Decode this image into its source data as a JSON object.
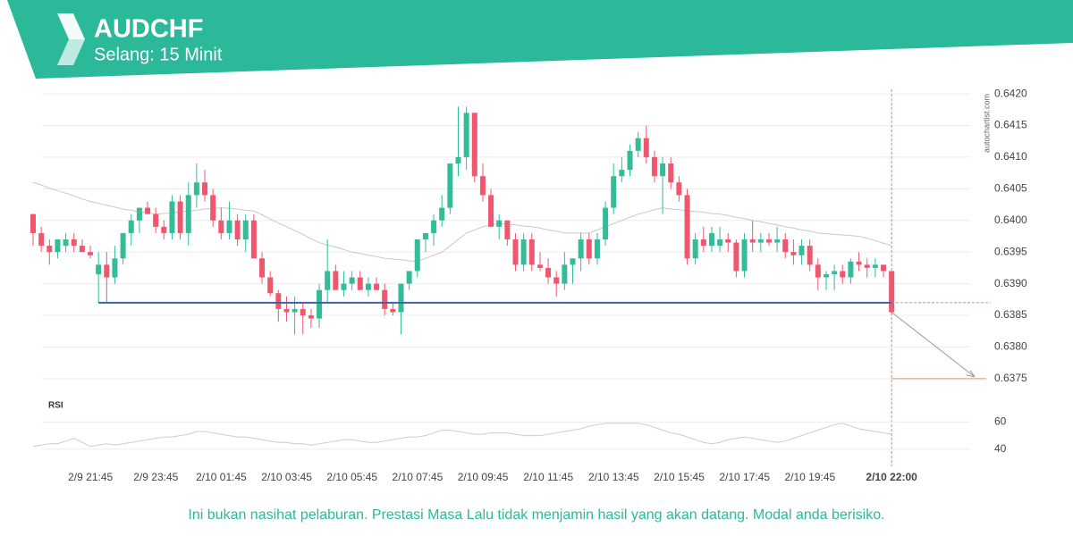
{
  "chart_data": [
    {
      "type": "candlestick",
      "title": "AUDCHF",
      "subtitle": "Selang: 15 Minit",
      "source": "autochartist.com",
      "x": [
        "2/9 19:45",
        "2/9 20:00",
        "2/9 20:15",
        "2/9 20:30",
        "2/9 20:45",
        "2/9 21:00",
        "2/9 21:15",
        "2/9 21:30",
        "2/9 21:45",
        "2/9 22:00",
        "2/9 22:15",
        "2/9 22:30",
        "2/9 22:45",
        "2/9 23:00",
        "2/9 23:15",
        "2/9 23:30",
        "2/9 23:45",
        "2/10 00:00",
        "2/10 00:15",
        "2/10 00:30",
        "2/10 00:45",
        "2/10 01:00",
        "2/10 01:15",
        "2/10 01:30",
        "2/10 01:45",
        "2/10 02:00",
        "2/10 02:15",
        "2/10 02:30",
        "2/10 02:45",
        "2/10 03:00",
        "2/10 03:15",
        "2/10 03:30",
        "2/10 03:45",
        "2/10 04:00",
        "2/10 04:15",
        "2/10 04:30",
        "2/10 04:45",
        "2/10 05:00",
        "2/10 05:15",
        "2/10 05:30",
        "2/10 05:45",
        "2/10 06:00",
        "2/10 06:15",
        "2/10 06:30",
        "2/10 06:45",
        "2/10 07:00",
        "2/10 07:15",
        "2/10 07:30",
        "2/10 07:45",
        "2/10 08:00",
        "2/10 08:15",
        "2/10 08:30",
        "2/10 08:45",
        "2/10 09:00",
        "2/10 09:15",
        "2/10 09:30",
        "2/10 09:45",
        "2/10 10:00",
        "2/10 10:15",
        "2/10 10:30",
        "2/10 10:45",
        "2/10 11:00",
        "2/10 11:15",
        "2/10 11:30",
        "2/10 11:45",
        "2/10 12:00",
        "2/10 12:15",
        "2/10 12:30",
        "2/10 12:45",
        "2/10 13:00",
        "2/10 13:15",
        "2/10 13:30",
        "2/10 13:45",
        "2/10 14:00",
        "2/10 14:15",
        "2/10 14:30",
        "2/10 14:45",
        "2/10 15:00",
        "2/10 15:15",
        "2/10 15:30",
        "2/10 15:45",
        "2/10 16:00",
        "2/10 16:15",
        "2/10 16:30",
        "2/10 16:45",
        "2/10 17:00",
        "2/10 17:15",
        "2/10 17:30",
        "2/10 17:45",
        "2/10 18:00",
        "2/10 18:15",
        "2/10 18:30",
        "2/10 18:45",
        "2/10 19:00",
        "2/10 19:15",
        "2/10 19:30",
        "2/10 19:45",
        "2/10 20:00",
        "2/10 20:15",
        "2/10 20:30",
        "2/10 20:45",
        "2/10 21:00",
        "2/10 21:15",
        "2/10 21:30",
        "2/10 21:45",
        "2/10 22:00"
      ],
      "open": [
        0.6401,
        0.6398,
        0.6396,
        0.6395,
        0.6396,
        0.6397,
        0.6396,
        0.6395,
        0.63915,
        0.6393,
        0.6391,
        0.6394,
        0.6398,
        0.64,
        0.6402,
        0.6401,
        0.6399,
        0.6398,
        0.6403,
        0.6398,
        0.6404,
        0.6406,
        0.6404,
        0.64,
        0.6398,
        0.64,
        0.6397,
        0.64,
        0.6394,
        0.6391,
        0.63885,
        0.6386,
        0.63855,
        0.6386,
        0.6385,
        0.63845,
        0.6389,
        0.6392,
        0.6389,
        0.639,
        0.6391,
        0.6389,
        0.639,
        0.6389,
        0.6386,
        0.63855,
        0.639,
        0.6392,
        0.6397,
        0.6398,
        0.64,
        0.6402,
        0.6409,
        0.641,
        0.6417,
        0.6407,
        0.6404,
        0.6399,
        0.64,
        0.6397,
        0.6393,
        0.6397,
        0.6393,
        0.63925,
        0.6391,
        0.639,
        0.6393,
        0.6394,
        0.6397,
        0.6394,
        0.6397,
        0.6402,
        0.6407,
        0.6408,
        0.6411,
        0.6413,
        0.641,
        0.6407,
        0.6409,
        0.6406,
        0.6404,
        0.6394,
        0.6397,
        0.6396,
        0.6396,
        0.6397,
        0.63965,
        0.6392,
        0.6397,
        0.63965,
        0.6397,
        0.63965,
        0.6397,
        0.6395,
        0.63945,
        0.6396,
        0.6393,
        0.6391,
        0.63915,
        0.6392,
        0.6391,
        0.63935,
        0.6393,
        0.63925,
        0.6393,
        0.6392
      ],
      "high": [
        0.6401,
        0.6399,
        0.6397,
        0.6397,
        0.6398,
        0.6398,
        0.6397,
        0.6396,
        0.6395,
        0.6395,
        0.6396,
        0.6398,
        0.6401,
        0.6402,
        0.6403,
        0.6402,
        0.64,
        0.6404,
        0.6404,
        0.6406,
        0.6409,
        0.6408,
        0.6405,
        0.6402,
        0.6403,
        0.6401,
        0.6401,
        0.6401,
        0.6395,
        0.6392,
        0.6389,
        0.6388,
        0.6388,
        0.6387,
        0.6386,
        0.639,
        0.6397,
        0.6393,
        0.6392,
        0.6392,
        0.6392,
        0.6391,
        0.6391,
        0.639,
        0.6387,
        0.639,
        0.6392,
        0.6397,
        0.6398,
        0.6401,
        0.6404,
        0.6409,
        0.6418,
        0.6418,
        0.6417,
        0.6409,
        0.6405,
        0.6401,
        0.64,
        0.6398,
        0.6398,
        0.6398,
        0.6395,
        0.6394,
        0.6392,
        0.6395,
        0.6394,
        0.6398,
        0.6398,
        0.6398,
        0.6403,
        0.6409,
        0.641,
        0.6412,
        0.6414,
        0.6415,
        0.6411,
        0.641,
        0.641,
        0.6407,
        0.6405,
        0.6398,
        0.6399,
        0.6399,
        0.6399,
        0.6398,
        0.6397,
        0.6398,
        0.64,
        0.6398,
        0.6398,
        0.6399,
        0.6398,
        0.6397,
        0.6397,
        0.6397,
        0.6394,
        0.6392,
        0.6393,
        0.6393,
        0.6394,
        0.6395,
        0.6394,
        0.6394,
        0.6393,
        0.6392
      ],
      "low": [
        0.6396,
        0.6395,
        0.6393,
        0.6394,
        0.6395,
        0.6395,
        0.6395,
        0.6394,
        0.6387,
        0.6387,
        0.639,
        0.6393,
        0.6396,
        0.6398,
        0.6401,
        0.6398,
        0.6397,
        0.6397,
        0.6397,
        0.6396,
        0.6402,
        0.6403,
        0.6399,
        0.6397,
        0.6397,
        0.6396,
        0.6395,
        0.6394,
        0.639,
        0.6388,
        0.6384,
        0.6384,
        0.6382,
        0.6382,
        0.6383,
        0.6383,
        0.6387,
        0.6389,
        0.6388,
        0.6389,
        0.6389,
        0.6388,
        0.6389,
        0.6385,
        0.6385,
        0.6382,
        0.6389,
        0.6391,
        0.6395,
        0.6396,
        0.6399,
        0.6401,
        0.6407,
        0.6408,
        0.6406,
        0.6403,
        0.6399,
        0.6397,
        0.6396,
        0.6392,
        0.6392,
        0.6392,
        0.6392,
        0.639,
        0.6388,
        0.6389,
        0.639,
        0.6392,
        0.6393,
        0.6393,
        0.6396,
        0.6401,
        0.6406,
        0.6407,
        0.641,
        0.6409,
        0.6406,
        0.6401,
        0.6405,
        0.6403,
        0.6393,
        0.6393,
        0.6395,
        0.6395,
        0.6395,
        0.6395,
        0.6391,
        0.6391,
        0.6395,
        0.6395,
        0.6396,
        0.6395,
        0.6394,
        0.6393,
        0.6393,
        0.6392,
        0.6389,
        0.6389,
        0.6389,
        0.639,
        0.639,
        0.6392,
        0.6391,
        0.6391,
        0.6391,
        0.6385
      ],
      "close": [
        0.6398,
        0.6396,
        0.6395,
        0.6397,
        0.6397,
        0.6396,
        0.6395,
        0.63945,
        0.6393,
        0.6391,
        0.6394,
        0.6398,
        0.64,
        0.6402,
        0.6401,
        0.6399,
        0.6398,
        0.6403,
        0.6398,
        0.6404,
        0.6406,
        0.6404,
        0.64,
        0.6398,
        0.64,
        0.6397,
        0.64,
        0.6394,
        0.6391,
        0.63885,
        0.6386,
        0.63855,
        0.6386,
        0.6385,
        0.63845,
        0.6389,
        0.6392,
        0.6389,
        0.639,
        0.6391,
        0.6389,
        0.639,
        0.6389,
        0.6386,
        0.63855,
        0.639,
        0.6392,
        0.6397,
        0.6398,
        0.64,
        0.6402,
        0.6409,
        0.641,
        0.6417,
        0.6407,
        0.6404,
        0.6399,
        0.64,
        0.6397,
        0.6393,
        0.6397,
        0.6393,
        0.63925,
        0.6391,
        0.639,
        0.6393,
        0.6394,
        0.6397,
        0.6394,
        0.6397,
        0.6402,
        0.6407,
        0.6408,
        0.6411,
        0.6413,
        0.641,
        0.6407,
        0.6409,
        0.6406,
        0.6404,
        0.6394,
        0.6397,
        0.6396,
        0.6398,
        0.6397,
        0.63965,
        0.6392,
        0.6397,
        0.63965,
        0.6397,
        0.63965,
        0.6397,
        0.6395,
        0.63945,
        0.6396,
        0.6393,
        0.6391,
        0.63915,
        0.6392,
        0.6391,
        0.63935,
        0.6393,
        0.63925,
        0.6393,
        0.6392,
        0.63855
      ],
      "up_color": "#34bc98",
      "down_color": "#f0566e",
      "ma": {
        "color": "#c9c9c9",
        "values": [
          0.6406,
          0.64056,
          0.64051,
          0.64047,
          0.64043,
          0.64039,
          0.64034,
          0.6403,
          0.64027,
          0.64024,
          0.64021,
          0.64018,
          0.64016,
          0.64014,
          0.64012,
          0.6401,
          0.64011,
          0.64012,
          0.64014,
          0.64015,
          0.64016,
          0.64018,
          0.64019,
          0.6402,
          0.64019,
          0.64018,
          0.64016,
          0.64015,
          0.64009,
          0.64002,
          0.63996,
          0.6399,
          0.63984,
          0.63978,
          0.63971,
          0.63965,
          0.63961,
          0.63958,
          0.63954,
          0.6395,
          0.63948,
          0.63945,
          0.63943,
          0.6394,
          0.63939,
          0.63938,
          0.63936,
          0.63935,
          0.6394,
          0.63945,
          0.6395,
          0.6396,
          0.6397,
          0.6398,
          0.63985,
          0.6399,
          0.63993,
          0.63995,
          0.63994,
          0.63993,
          0.63991,
          0.6399,
          0.63988,
          0.63985,
          0.63983,
          0.6398,
          0.6398,
          0.6398,
          0.6398,
          0.63985,
          0.6399,
          0.63995,
          0.64,
          0.64005,
          0.6401,
          0.64013,
          0.64017,
          0.6402,
          0.64018,
          0.64017,
          0.64015,
          0.64014,
          0.64013,
          0.64011,
          0.6401,
          0.64008,
          0.64005,
          0.64003,
          0.64,
          0.63998,
          0.63995,
          0.63993,
          0.6399,
          0.63988,
          0.63985,
          0.63983,
          0.6398,
          0.63979,
          0.63978,
          0.63977,
          0.63976,
          0.63975,
          0.63972,
          0.63968,
          0.63964,
          0.6396
        ]
      },
      "support": {
        "value": 0.6387,
        "color": "#3d62a6"
      },
      "target": {
        "value": 0.6375,
        "color": "#f08a5d"
      },
      "ylim": [
        0.6373,
        0.6421
      ],
      "yticks": [
        0.6375,
        {
          "value": 0.638,
          "label": "0.6380"
        },
        0.6385,
        {
          "value": 0.639,
          "label": "0.6390"
        },
        0.6395,
        {
          "value": 0.64,
          "label": "0.6400"
        },
        0.6405,
        {
          "value": 0.641,
          "label": "0.6410"
        },
        0.6415,
        {
          "value": 0.642,
          "label": "0.6420"
        }
      ],
      "xticks": [
        "2/9 21:45",
        "2/9 23:45",
        "2/10 01:45",
        "2/10 03:45",
        "2/10 05:45",
        "2/10 07:45",
        "2/10 09:45",
        "2/10 11:45",
        "2/10 13:45",
        "2/10 15:45",
        "2/10 17:45",
        "2/10 19:45",
        "2/10 22:00"
      ],
      "grid": true
    },
    {
      "type": "line",
      "title": "RSI",
      "color": "#cccccc",
      "values": [
        42,
        43,
        44,
        44,
        46,
        48,
        45,
        42,
        43,
        44,
        43,
        44,
        45,
        46,
        47,
        48,
        49,
        49,
        50,
        51,
        53,
        53,
        52,
        51,
        50,
        49,
        49,
        48,
        47,
        46,
        45,
        45,
        44,
        44,
        43,
        44,
        45,
        46,
        47,
        47,
        46,
        45,
        45,
        46,
        47,
        48,
        49,
        49,
        50,
        52,
        54,
        54,
        53,
        52,
        51,
        51,
        52,
        52,
        52,
        51,
        50,
        50,
        50,
        51,
        52,
        53,
        54,
        55,
        57,
        58,
        59,
        59,
        59,
        59,
        59,
        58,
        56,
        54,
        52,
        51,
        49,
        47,
        45,
        44,
        45,
        47,
        48,
        49,
        48,
        47,
        46,
        45,
        46,
        48,
        50,
        52,
        54,
        56,
        58,
        59,
        57,
        55,
        54,
        53,
        52,
        51
      ],
      "ylim": [
        32,
        78
      ],
      "yticks": [
        40,
        60
      ],
      "grid": true
    }
  ],
  "footer": "Ini bukan nasihat pelaburan. Prestasi Masa Lalu tidak menjamin hasil yang akan datang. Modal anda berisiko."
}
